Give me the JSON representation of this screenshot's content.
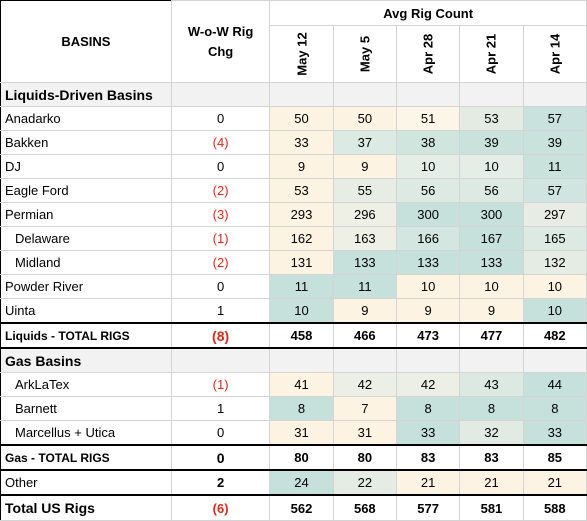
{
  "chart_data": {
    "type": "table",
    "header": {
      "basins_label": "BASINS",
      "chg_label_line1": "W-o-W Rig",
      "chg_label_line2": "Chg",
      "group_label": "Avg Rig Count",
      "dates": [
        "May 12",
        "May 5",
        "Apr 28",
        "Apr 21",
        "Apr 14"
      ]
    },
    "rows": [
      {
        "kind": "section",
        "label": "Liquids-Driven Basins"
      },
      {
        "kind": "data",
        "label": "Anadarko",
        "chg": "0",
        "neg": false,
        "values": [
          50,
          50,
          51,
          53,
          57
        ],
        "colors": [
          "#fdf3e3",
          "#fdf3e3",
          "#fbf6e7",
          "#e3ebe3",
          "#c9e2de"
        ]
      },
      {
        "kind": "data",
        "label": "Bakken",
        "chg": "(4)",
        "neg": true,
        "values": [
          33,
          37,
          38,
          39,
          39
        ],
        "colors": [
          "#fdf3e3",
          "#dceae4",
          "#d1e5df",
          "#c9e2dc",
          "#c9e2dc"
        ]
      },
      {
        "kind": "data",
        "label": "DJ",
        "chg": "0",
        "neg": false,
        "values": [
          9,
          9,
          10,
          10,
          11
        ],
        "colors": [
          "#fdf3e3",
          "#fdf3e3",
          "#e4eee7",
          "#e4eee7",
          "#c9e2dc"
        ]
      },
      {
        "kind": "data",
        "label": "Eagle Ford",
        "chg": "(2)",
        "neg": true,
        "values": [
          53,
          55,
          56,
          56,
          57
        ],
        "colors": [
          "#fdf3e3",
          "#e7ede4",
          "#dceae3",
          "#dceae3",
          "#d0e5df"
        ]
      },
      {
        "kind": "data",
        "label": "Permian",
        "chg": "(3)",
        "neg": true,
        "values": [
          293,
          296,
          300,
          300,
          297
        ],
        "colors": [
          "#fdf3e3",
          "#eef0e6",
          "#c6e0dc",
          "#c6e0dc",
          "#e7ede5"
        ]
      },
      {
        "kind": "data",
        "label": "Delaware",
        "chg": "(1)",
        "neg": true,
        "indent": true,
        "values": [
          162,
          163,
          166,
          167,
          165
        ],
        "colors": [
          "#fdf3e3",
          "#eef0e6",
          "#d3e6e0",
          "#c6e0dc",
          "#dceae3"
        ]
      },
      {
        "kind": "data",
        "label": "Midland",
        "chg": "(2)",
        "neg": true,
        "indent": true,
        "values": [
          131,
          133,
          133,
          133,
          132
        ],
        "colors": [
          "#fdf3e3",
          "#c6e0dc",
          "#c6e0dc",
          "#c6e0dc",
          "#e4ece4"
        ]
      },
      {
        "kind": "data",
        "label": "Powder River",
        "chg": "0",
        "neg": false,
        "values": [
          11,
          11,
          10,
          10,
          10
        ],
        "colors": [
          "#c6e0dc",
          "#c6e0dc",
          "#fdf3e3",
          "#fdf3e3",
          "#fdf3e3"
        ]
      },
      {
        "kind": "data",
        "label": "Uinta",
        "chg": "1",
        "neg": false,
        "values": [
          10,
          9,
          9,
          9,
          10
        ],
        "colors": [
          "#c6e0dc",
          "#fdf3e3",
          "#fdf3e3",
          "#fdf3e3",
          "#c6e0dc"
        ]
      },
      {
        "kind": "total",
        "label_a": "Liquids",
        "label_b": " - TOTAL RIGS",
        "chg": "(8)",
        "neg": true,
        "values": [
          458,
          466,
          473,
          477,
          482
        ]
      },
      {
        "kind": "section",
        "label": "Gas Basins"
      },
      {
        "kind": "data",
        "label": "ArkLaTex",
        "chg": "(1)",
        "neg": true,
        "indent": true,
        "values": [
          41,
          42,
          42,
          43,
          44
        ],
        "colors": [
          "#fdf3e3",
          "#ecefe5",
          "#ecefe5",
          "#dbe9e2",
          "#c6e0dc"
        ]
      },
      {
        "kind": "data",
        "label": "Barnett",
        "chg": "1",
        "neg": false,
        "indent": true,
        "values": [
          8,
          7,
          8,
          8,
          8
        ],
        "colors": [
          "#c6e0dc",
          "#fdf3e3",
          "#c6e0dc",
          "#c6e0dc",
          "#c6e0dc"
        ]
      },
      {
        "kind": "data",
        "label": "Marcellus + Utica",
        "chg": "0",
        "neg": false,
        "indent": true,
        "values": [
          31,
          31,
          33,
          32,
          33
        ],
        "colors": [
          "#fdf3e3",
          "#fdf3e3",
          "#c6e0dc",
          "#e2ebe3",
          "#c6e0dc"
        ]
      },
      {
        "kind": "total",
        "label_a": "Gas",
        "label_b": " - TOTAL RIGS",
        "chg": "0",
        "neg": false,
        "values": [
          80,
          80,
          83,
          83,
          85
        ]
      },
      {
        "kind": "data",
        "label": "Other",
        "chg": "2",
        "neg": false,
        "bold_chg": true,
        "values": [
          24,
          22,
          21,
          21,
          21
        ],
        "colors": [
          "#c6e0dc",
          "#e4ece4",
          "#fdf3e3",
          "#fdf3e3",
          "#fdf3e3"
        ]
      },
      {
        "kind": "grand",
        "label": "Total US Rigs",
        "chg": "(6)",
        "neg": true,
        "values": [
          562,
          568,
          577,
          581,
          588
        ]
      }
    ]
  }
}
